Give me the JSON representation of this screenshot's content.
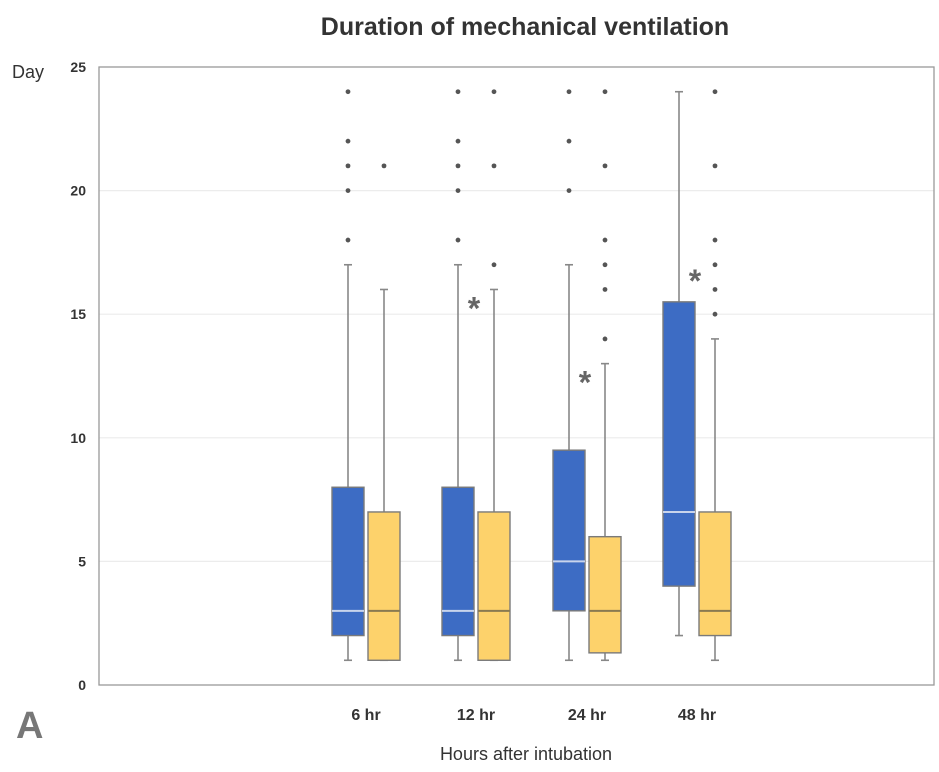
{
  "chart_data": {
    "type": "box",
    "title": "Duration of mechanical ventilation",
    "ylabel": "Day",
    "xlabel": "Hours after intubation",
    "panel_label": "A",
    "ylim": [
      0,
      25
    ],
    "yticks": [
      0,
      5,
      10,
      15,
      20,
      25
    ],
    "grid": true,
    "categories": [
      "6 hr",
      "12 hr",
      "24 hr",
      "48 hr"
    ],
    "colors": {
      "blue": "#3d6cc4",
      "yellow": "#fdd26b",
      "whisker": "#888888",
      "box_border": "#7a7a7a",
      "median_blue": "#c8d4ec",
      "median_yellow": "#8a7a50"
    },
    "significance_marker": "*",
    "significant_categories": [
      "12 hr",
      "24 hr",
      "48 hr"
    ],
    "series": [
      {
        "color_key": "blue",
        "boxes": [
          {
            "whislo": 1,
            "q1": 2,
            "med": 3,
            "q3": 8,
            "whishi": 17,
            "fliers": [
              18,
              20,
              21,
              22,
              24
            ]
          },
          {
            "whislo": 1,
            "q1": 2,
            "med": 3,
            "q3": 8,
            "whishi": 17,
            "fliers": [
              18,
              20,
              21,
              22,
              24
            ]
          },
          {
            "whislo": 1,
            "q1": 3,
            "med": 5,
            "q3": 9.5,
            "whishi": 17,
            "fliers": [
              20,
              22,
              24
            ]
          },
          {
            "whislo": 2,
            "q1": 4,
            "med": 7,
            "q3": 15.5,
            "whishi": 24,
            "fliers": []
          }
        ]
      },
      {
        "color_key": "yellow",
        "boxes": [
          {
            "whislo": 1,
            "q1": 1,
            "med": 3,
            "q3": 7,
            "whishi": 16,
            "fliers": [
              21
            ]
          },
          {
            "whislo": 1,
            "q1": 1,
            "med": 3,
            "q3": 7,
            "whishi": 16,
            "fliers": [
              17,
              21,
              24
            ]
          },
          {
            "whislo": 1,
            "q1": 1.3,
            "med": 3,
            "q3": 6,
            "whishi": 13,
            "fliers": [
              14,
              16,
              17,
              18,
              21,
              24
            ]
          },
          {
            "whislo": 1,
            "q1": 2,
            "med": 3,
            "q3": 7,
            "whishi": 14,
            "fliers": [
              15,
              16,
              17,
              18,
              21,
              24
            ]
          }
        ]
      }
    ]
  }
}
